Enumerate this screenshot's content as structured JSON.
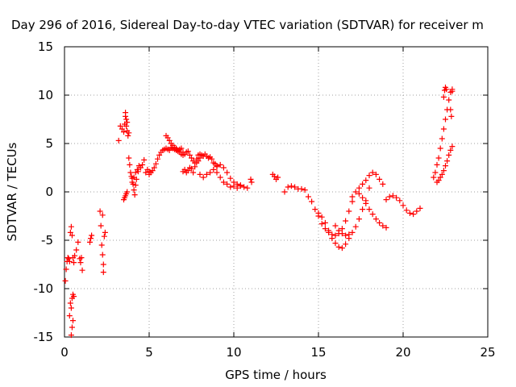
{
  "chart_data": {
    "type": "scatter",
    "title": "Day 296 of 2016, Sidereal Day-to-day VTEC variation (SDTVAR) for receiver m",
    "xlabel": "GPS time / hours",
    "ylabel": "SDTVAR / TECUs",
    "xlim": [
      0,
      25
    ],
    "ylim": [
      -15,
      15
    ],
    "x_ticks": [
      "0",
      "5",
      "10",
      "15",
      "20",
      "25"
    ],
    "y_ticks": [
      "15",
      "10",
      "5",
      "0",
      "-5",
      "-10",
      "-15"
    ],
    "grid": true,
    "marker": "+",
    "color": "#ff0000",
    "series": [
      {
        "x": [
          0.05,
          0.1,
          0.15,
          0.2,
          0.25,
          0.3,
          0.35,
          0.4,
          0.45,
          0.5,
          0.55,
          0.6,
          0.3,
          0.35,
          0.4,
          0.45,
          0.5,
          0.55,
          0.7,
          0.8,
          0.9,
          0.95,
          1.0,
          1.05,
          0.4,
          0.45,
          0.5,
          1.5,
          1.55,
          1.6,
          2.1,
          2.15,
          2.2,
          2.25,
          2.3,
          2.35,
          2.4,
          2.3,
          2.25,
          3.2,
          3.3,
          3.4,
          3.5,
          3.55,
          3.6,
          3.65,
          3.7,
          3.75,
          3.8,
          3.5,
          3.55,
          3.6,
          3.65,
          3.7,
          3.6,
          3.65,
          3.7,
          3.8,
          3.85,
          3.9,
          3.95,
          4.0,
          4.05,
          4.1,
          4.15,
          4.2,
          4.25,
          4.3,
          4.35,
          4.4,
          4.0,
          4.1,
          4.2,
          4.5,
          4.6,
          4.7,
          4.8,
          4.9,
          5.0,
          5.0,
          5.1,
          5.2,
          5.3,
          5.4,
          5.5,
          5.6,
          5.7,
          5.8,
          5.9,
          6.0,
          6.1,
          6.2,
          6.3,
          6.4,
          6.5,
          6.6,
          6.7,
          6.8,
          6.9,
          7.0,
          6.0,
          6.1,
          6.2,
          6.3,
          6.4,
          6.5,
          6.6,
          6.7,
          6.8,
          6.9,
          7.0,
          7.1,
          7.2,
          7.3,
          7.4,
          7.5,
          7.6,
          7.7,
          7.8,
          7.9,
          8.0,
          7.0,
          7.1,
          7.2,
          7.3,
          7.4,
          7.5,
          7.6,
          7.7,
          7.8,
          7.9,
          8.0,
          8.1,
          8.2,
          8.3,
          8.4,
          8.5,
          8.6,
          8.7,
          8.8,
          8.9,
          9.0,
          8.0,
          8.2,
          8.4,
          8.6,
          8.8,
          9.0,
          9.2,
          9.4,
          9.6,
          9.8,
          10.0,
          10.2,
          10.4,
          10.6,
          10.8,
          9.0,
          9.2,
          9.4,
          9.6,
          9.8,
          10.0,
          10.2,
          10.4,
          11.0,
          11.05,
          12.3,
          12.4,
          12.5,
          12.6,
          13.0,
          13.2,
          13.4,
          13.6,
          13.8,
          14.0,
          14.2,
          14.4,
          14.6,
          14.8,
          15.0,
          15.2,
          15.4,
          15.6,
          15.8,
          16.0,
          16.2,
          16.4,
          16.6,
          16.8,
          17.0,
          15.0,
          15.2,
          15.4,
          15.6,
          15.8,
          16.0,
          16.2,
          16.4,
          16.6,
          16.8,
          17.0,
          17.2,
          17.4,
          17.6,
          17.8,
          18.0,
          16.0,
          16.2,
          16.4,
          16.6,
          16.8,
          17.0,
          17.2,
          17.4,
          17.6,
          17.8,
          18.0,
          18.2,
          18.4,
          18.6,
          18.8,
          17.4,
          17.6,
          17.8,
          18.0,
          18.2,
          18.4,
          18.6,
          18.8,
          19.0,
          19.0,
          19.2,
          19.4,
          19.6,
          19.8,
          20.0,
          20.2,
          20.4,
          20.6,
          20.8,
          21.0,
          21.8,
          21.9,
          22.0,
          22.1,
          22.2,
          22.3,
          22.4,
          22.5,
          22.6,
          22.7,
          22.8,
          22.9,
          22.0,
          22.1,
          22.2,
          22.3,
          22.4,
          22.5,
          22.6,
          22.7,
          22.8,
          22.9,
          22.4,
          22.45,
          22.5,
          22.55,
          22.8,
          22.85,
          22.9
        ],
        "y": [
          -9.2,
          -8.0,
          -7.2,
          -6.8,
          -6.9,
          -7.2,
          -4.2,
          -3.6,
          -4.5,
          -6.8,
          -7.3,
          -6.6,
          -12.8,
          -11.5,
          -12.0,
          -11.0,
          -10.6,
          -10.8,
          -6.0,
          -5.2,
          -6.9,
          -7.3,
          -6.8,
          -8.1,
          -14.8,
          -14.0,
          -13.3,
          -5.2,
          -4.8,
          -4.5,
          -2.0,
          -3.5,
          -5.5,
          -6.5,
          -7.5,
          -4.6,
          -4.2,
          -8.3,
          -2.4,
          5.3,
          6.8,
          6.5,
          6.2,
          7.0,
          7.8,
          6.8,
          6.3,
          5.8,
          6.1,
          -0.8,
          -0.6,
          -0.4,
          -0.2,
          0.0,
          8.2,
          7.5,
          7.2,
          3.5,
          2.8,
          2.0,
          1.6,
          1.4,
          0.8,
          0.2,
          -0.3,
          0.7,
          1.3,
          2.3,
          2.1,
          2.7,
          1.0,
          1.5,
          2.0,
          2.5,
          2.8,
          3.3,
          2.0,
          2.3,
          2.1,
          1.8,
          2.0,
          2.2,
          2.5,
          2.9,
          3.4,
          3.8,
          4.1,
          4.3,
          4.4,
          4.5,
          4.4,
          4.3,
          4.6,
          4.5,
          4.4,
          4.3,
          4.2,
          4.1,
          3.9,
          3.8,
          5.8,
          5.6,
          5.3,
          5.0,
          4.8,
          4.6,
          4.5,
          4.3,
          4.4,
          4.5,
          4.1,
          3.9,
          4.1,
          4.2,
          3.8,
          3.5,
          3.2,
          3.0,
          3.4,
          3.8,
          3.9,
          2.1,
          2.3,
          2.0,
          2.2,
          2.5,
          2.4,
          2.0,
          2.6,
          3.0,
          3.2,
          3.5,
          3.8,
          3.7,
          3.9,
          3.7,
          3.5,
          3.6,
          3.4,
          3.0,
          2.9,
          2.7,
          1.8,
          1.5,
          1.8,
          2.0,
          2.3,
          2.6,
          2.8,
          2.5,
          2.0,
          1.4,
          1.0,
          0.8,
          0.6,
          0.5,
          0.4,
          2.0,
          1.5,
          1.0,
          0.8,
          0.5,
          0.6,
          0.4,
          0.7,
          1.3,
          1.0,
          1.8,
          1.6,
          1.3,
          1.5,
          0.0,
          0.5,
          0.6,
          0.5,
          0.3,
          0.3,
          0.2,
          -0.5,
          -1.0,
          -1.8,
          -2.5,
          -3.3,
          -3.8,
          -4.2,
          -4.4,
          -4.5,
          -4.3,
          -3.8,
          -3.0,
          -2.0,
          -1.0,
          -2.2,
          -2.6,
          -3.2,
          -4.0,
          -4.8,
          -5.3,
          -5.7,
          -5.8,
          -5.4,
          -4.8,
          -4.2,
          -3.6,
          -2.8,
          -1.8,
          -0.9,
          0.4,
          -3.5,
          -4.0,
          -4.3,
          -4.5,
          -4.4,
          -0.5,
          0.0,
          0.4,
          0.8,
          1.2,
          1.7,
          2.0,
          1.8,
          1.3,
          0.8,
          -0.2,
          -0.6,
          -1.2,
          -1.8,
          -2.3,
          -2.8,
          -3.2,
          -3.5,
          -3.7,
          -0.8,
          -0.5,
          -0.4,
          -0.6,
          -0.9,
          -1.4,
          -1.9,
          -2.2,
          -2.3,
          -2.0,
          -1.7,
          1.5,
          2.0,
          2.8,
          3.5,
          4.5,
          5.5,
          6.5,
          7.5,
          8.5,
          9.5,
          10.3,
          10.6,
          1.0,
          1.2,
          1.5,
          1.8,
          2.2,
          2.7,
          3.2,
          3.8,
          4.3,
          4.7,
          9.8,
          10.5,
          10.8,
          10.6,
          8.5,
          7.8,
          10.4
        ]
      }
    ]
  }
}
